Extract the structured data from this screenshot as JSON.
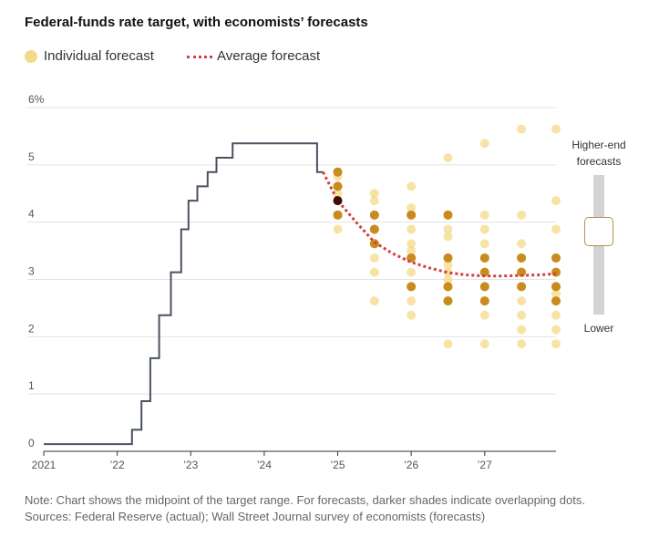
{
  "chart_data": {
    "type": "scatter",
    "title": "Federal-funds rate target, with economists’ forecasts",
    "legend": {
      "individual": "Individual forecast",
      "average": "Average forecast",
      "placement": "top-left"
    },
    "xlabel": "",
    "ylabel": "",
    "xlim": [
      2021.0,
      2027.97
    ],
    "ylim": [
      0,
      6
    ],
    "x_ticks": [
      {
        "value": 2021,
        "label": "2021"
      },
      {
        "value": 2022,
        "label": "’22"
      },
      {
        "value": 2023,
        "label": "’23"
      },
      {
        "value": 2024,
        "label": "’24"
      },
      {
        "value": 2025,
        "label": "’25"
      },
      {
        "value": 2026,
        "label": "’26"
      },
      {
        "value": 2027,
        "label": "’27"
      }
    ],
    "y_ticks": [
      {
        "value": 0,
        "label": "0"
      },
      {
        "value": 1,
        "label": "1"
      },
      {
        "value": 2,
        "label": "2"
      },
      {
        "value": 3,
        "label": "3"
      },
      {
        "value": 4,
        "label": "4"
      },
      {
        "value": 5,
        "label": "5"
      },
      {
        "value": 6,
        "label": "6%"
      }
    ],
    "grid": true,
    "actual": {
      "name": "Federal-funds rate target (actual)",
      "color": "#4a5260",
      "x": [
        2021.0,
        2022.2,
        2022.2,
        2022.33,
        2022.33,
        2022.45,
        2022.45,
        2022.57,
        2022.57,
        2022.73,
        2022.73,
        2022.87,
        2022.87,
        2022.97,
        2022.97,
        2023.09,
        2023.09,
        2023.23,
        2023.23,
        2023.35,
        2023.35,
        2023.57,
        2023.57,
        2024.72,
        2024.72,
        2024.8
      ],
      "y": [
        0.125,
        0.125,
        0.375,
        0.375,
        0.875,
        0.875,
        1.625,
        1.625,
        2.375,
        2.375,
        3.125,
        3.125,
        3.875,
        3.875,
        4.375,
        4.375,
        4.625,
        4.625,
        4.875,
        4.875,
        5.125,
        5.125,
        5.375,
        5.375,
        4.875,
        4.875
      ]
    },
    "average": {
      "name": "Average forecast",
      "color": "#d0413c",
      "x": [
        2024.8,
        2025.0,
        2025.25,
        2025.5,
        2025.75,
        2026.0,
        2026.25,
        2026.5,
        2026.75,
        2027.0,
        2027.25,
        2027.5,
        2027.75,
        2027.97
      ],
      "y": [
        4.875,
        4.375,
        4.0,
        3.65,
        3.45,
        3.3,
        3.2,
        3.12,
        3.08,
        3.06,
        3.06,
        3.07,
        3.08,
        3.1
      ]
    },
    "forecasts": [
      {
        "x": 2025.0,
        "values": [
          4.875,
          4.875,
          4.8,
          4.625,
          4.625,
          4.5,
          4.375,
          4.125,
          4.125,
          3.875
        ]
      },
      {
        "x": 2025.5,
        "values": [
          4.5,
          4.375,
          4.125,
          4.125,
          3.875,
          3.875,
          3.625,
          3.625,
          3.375,
          3.125,
          2.625
        ]
      },
      {
        "x": 2026.0,
        "values": [
          4.625,
          4.25,
          4.125,
          4.125,
          3.875,
          3.625,
          3.5,
          3.375,
          3.375,
          3.125,
          2.875,
          2.875,
          2.625,
          2.375
        ]
      },
      {
        "x": 2026.5,
        "values": [
          5.125,
          4.125,
          4.125,
          3.875,
          3.75,
          3.375,
          3.375,
          3.25,
          3.125,
          3.0,
          2.875,
          2.875,
          2.625,
          2.625,
          1.875
        ]
      },
      {
        "x": 2027.0,
        "values": [
          5.375,
          4.125,
          3.875,
          3.625,
          3.375,
          3.375,
          3.125,
          3.125,
          2.875,
          2.875,
          2.625,
          2.625,
          2.375,
          1.875
        ]
      },
      {
        "x": 2027.5,
        "values": [
          5.625,
          4.125,
          3.625,
          3.375,
          3.375,
          3.125,
          3.125,
          2.875,
          2.875,
          2.625,
          2.375,
          2.125,
          1.875
        ]
      },
      {
        "x": 2027.97,
        "values": [
          5.625,
          4.375,
          3.875,
          3.375,
          3.375,
          3.125,
          3.125,
          2.875,
          2.875,
          2.75,
          2.625,
          2.625,
          2.375,
          2.125,
          1.875
        ]
      }
    ],
    "dot_color": "#f5d98a",
    "overlap_colors": [
      "#f5d98a",
      "#e8b84f",
      "#c98a1f",
      "#a25a0a",
      "#7a3a05",
      "#3b0f05"
    ],
    "notes": [
      "Note: Chart shows the midpoint of the target range. For forecasts, darker shades indicate overlapping dots.",
      "Sources: Federal Reserve (actual); Wall Street Journal survey of economists (forecasts)"
    ]
  },
  "controls": {
    "slider_top_label": "Higher-end forecasts",
    "slider_bottom_label": "Lower",
    "slider_value": 0.3
  }
}
